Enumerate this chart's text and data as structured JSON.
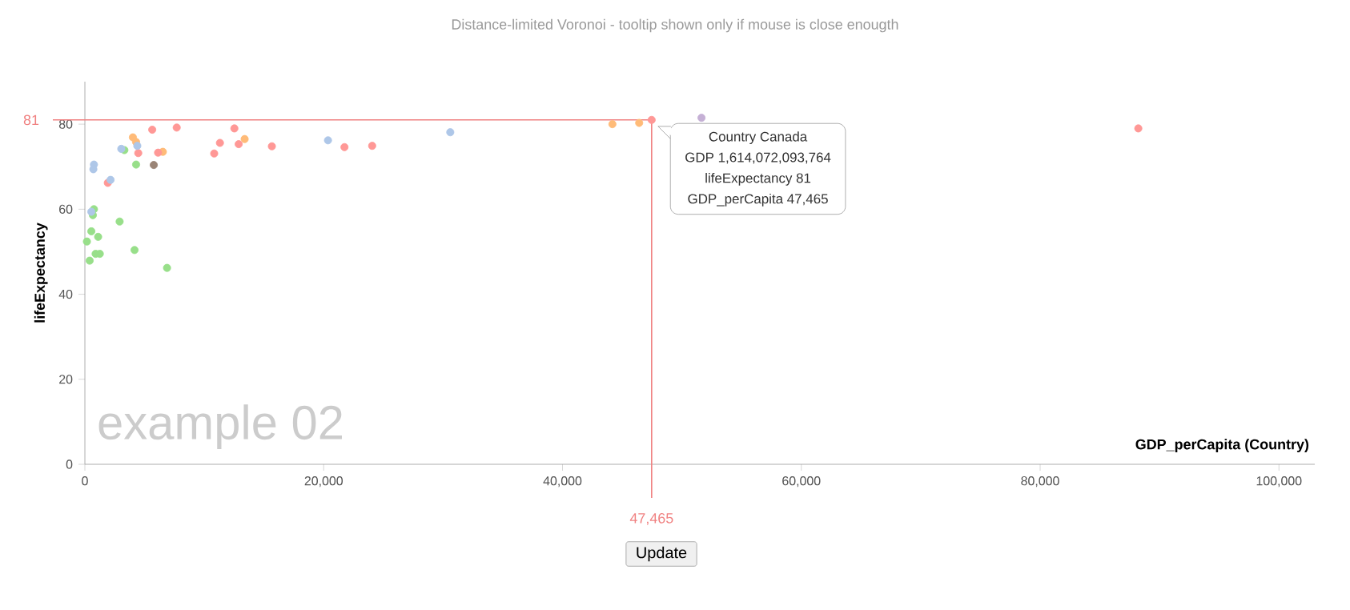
{
  "chart_data": {
    "type": "scatter",
    "title": "Distance-limited Voronoi - tooltip shown only if mouse is close enougth",
    "xlabel": "GDP_perCapita (Country)",
    "ylabel": "lifeExpectancy",
    "xlim": [
      0,
      103000
    ],
    "ylim": [
      0,
      90
    ],
    "xticks": [
      {
        "value": 0,
        "label": "0"
      },
      {
        "value": 20000,
        "label": "20,000"
      },
      {
        "value": 40000,
        "label": "40,000"
      },
      {
        "value": 60000,
        "label": "60,000"
      },
      {
        "value": 80000,
        "label": "80,000"
      },
      {
        "value": 100000,
        "label": "100,000"
      }
    ],
    "yticks": [
      0,
      20,
      40,
      60,
      80
    ],
    "series": [
      {
        "color": "#ffbb78",
        "x": [
          4020,
          4290,
          13380,
          6530,
          44180,
          46420
        ],
        "values": [
          76.9,
          75.8,
          76.5,
          73.5,
          80.0,
          80.3
        ]
      },
      {
        "color": "#ff9896",
        "x": [
          5640,
          7690,
          12520,
          11310,
          12880,
          15660,
          21740,
          24060,
          4470,
          6130,
          10830,
          1920,
          47465,
          88220
        ],
        "values": [
          78.7,
          79.2,
          79.0,
          75.6,
          75.3,
          74.8,
          74.6,
          74.9,
          73.2,
          73.3,
          73.1,
          66.2,
          81,
          79.0
        ]
      },
      {
        "color": "#98df8a",
        "x": [
          3310,
          4290,
          760,
          670,
          2910,
          540,
          1110,
          170,
          4160,
          900,
          1250,
          400,
          6880
        ],
        "values": [
          73.9,
          70.5,
          60.0,
          58.6,
          57.1,
          54.8,
          53.5,
          52.4,
          50.4,
          49.5,
          49.5,
          47.9,
          46.2
        ]
      },
      {
        "color": "#c5b0d5",
        "x": [
          51640
        ],
        "values": [
          81.5
        ]
      },
      {
        "color": "#9a8476",
        "x": [
          5770
        ],
        "values": [
          70.4
        ]
      },
      {
        "color": "#aec7e8",
        "x": [
          30600,
          3050,
          4390,
          20360,
          760,
          710,
          2150,
          540
        ],
        "values": [
          78.1,
          74.2,
          74.9,
          76.2,
          70.5,
          69.4,
          66.9,
          59.4
        ]
      }
    ],
    "ref_lines": [
      {
        "axis": "x",
        "value": 47465,
        "label": "47,465",
        "color": "#f08080"
      },
      {
        "axis": "y",
        "value": 81,
        "label": "81",
        "color": "#f08080"
      }
    ],
    "annotations": [
      "Country Canada",
      "GDP 1,614,072,093,764",
      "lifeExpectancy 81",
      "GDP_perCapita 47,465",
      "example 02",
      "Update"
    ]
  }
}
